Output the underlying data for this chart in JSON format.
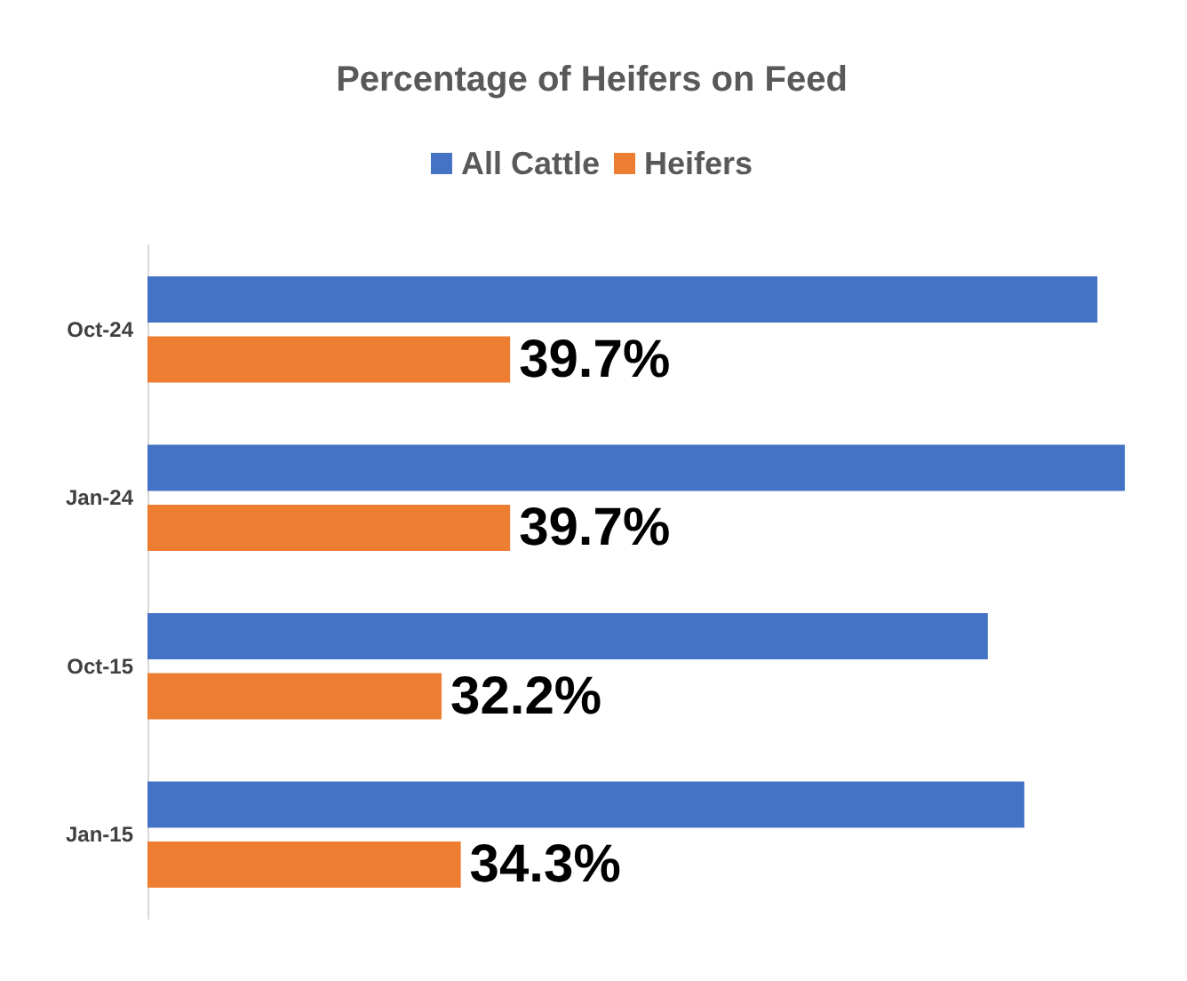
{
  "chart_data": {
    "type": "bar",
    "orientation": "horizontal",
    "title": "Percentage of Heifers on Feed",
    "categories": [
      "Oct-24",
      "Jan-24",
      "Oct-15",
      "Jan-15"
    ],
    "series": [
      {
        "name": "All Cattle",
        "color": "#4472c4",
        "values": [
          104,
          107,
          92,
          96
        ]
      },
      {
        "name": "Heifers",
        "color": "#ed7d31",
        "values": [
          39.7,
          39.7,
          32.2,
          34.3
        ],
        "value_labels": [
          "39.7%",
          "39.7%",
          "32.2%",
          "34.3%"
        ]
      }
    ],
    "legend": "top",
    "tick_labels": "y"
  }
}
